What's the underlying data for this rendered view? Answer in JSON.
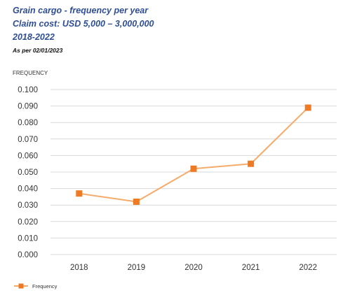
{
  "header": {
    "title": "Grain cargo - frequency per year",
    "subtitle": "Claim cost: USD 5,000 – 3,000,000",
    "period": "2018-2022",
    "as_of": "As per 02/01/2023"
  },
  "colors": {
    "heading": "#2f4e96",
    "line": "#f6ab6a",
    "marker": "#ee7a24",
    "grid": "#d9d9d9",
    "tick_text": "#333333"
  },
  "chart_data": {
    "type": "line",
    "title": "",
    "xlabel": "",
    "ylabel": "FREQUENCY",
    "categories": [
      "2018",
      "2019",
      "2020",
      "2021",
      "2022"
    ],
    "series": [
      {
        "name": "Frequency",
        "values": [
          0.037,
          0.032,
          0.052,
          0.055,
          0.089
        ]
      }
    ],
    "ylim": [
      0,
      0.1
    ],
    "yticks": [
      "0.000",
      "0.010",
      "0.020",
      "0.030",
      "0.040",
      "0.050",
      "0.060",
      "0.070",
      "0.080",
      "0.090",
      "0.100"
    ],
    "grid": true,
    "legend_position": "bottom-left",
    "marker": "square"
  }
}
